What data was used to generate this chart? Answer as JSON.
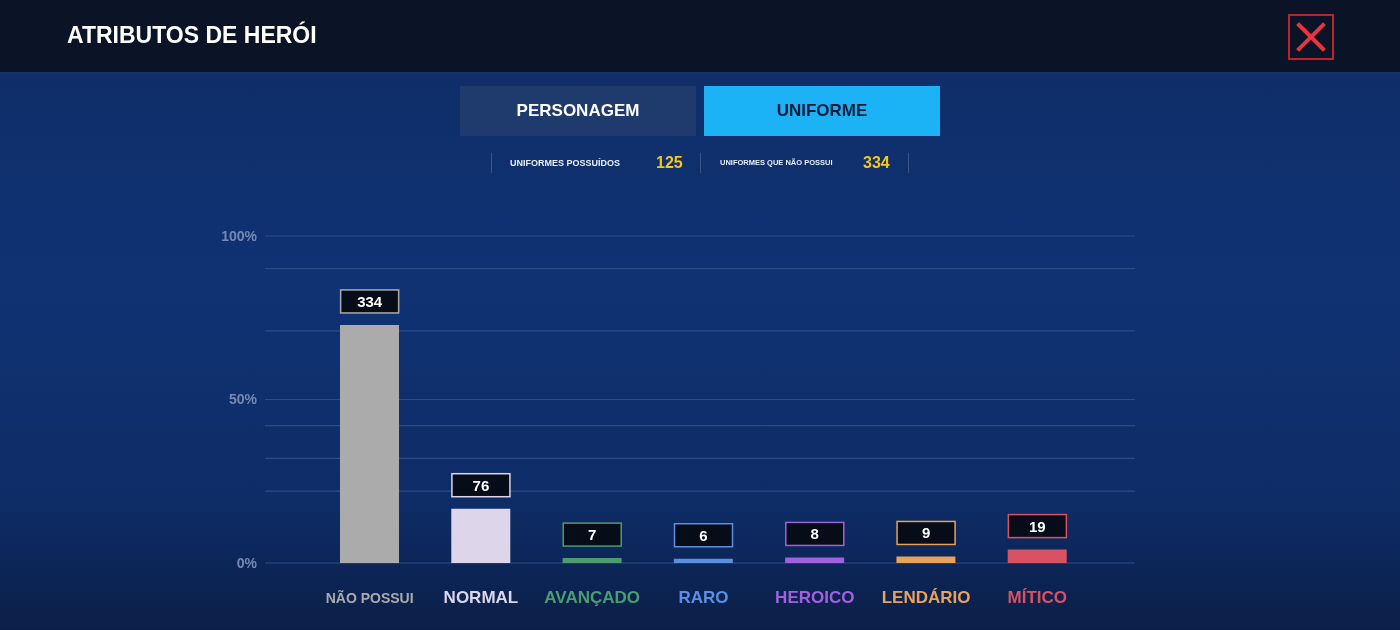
{
  "chart_data": {
    "type": "bar",
    "title": "ATRIBUTOS DE HERÓI",
    "categories": [
      "NÃO POSSUI",
      "NORMAL",
      "AVANÇADO",
      "RARO",
      "HEROICO",
      "LENDÁRIO",
      "MÍTICO"
    ],
    "values": [
      72.8,
      16.6,
      1.5,
      1.3,
      1.7,
      2.0,
      4.1
    ],
    "colors": [
      "#ababab",
      "#ddd5ea",
      "#4c9c70",
      "#5c8fe0",
      "#a261dc",
      "#e8a25a",
      "#d95262"
    ],
    "ylim": [
      0,
      100
    ],
    "yticks": [
      {
        "value": 0,
        "label": "0%"
      },
      {
        "value": 22,
        "label": null
      },
      {
        "value": 32,
        "label": null
      },
      {
        "value": 42,
        "label": null
      },
      {
        "value": 50,
        "label": "50%"
      },
      {
        "value": 71,
        "label": null
      },
      {
        "value": 90,
        "label": null
      },
      {
        "value": 100,
        "label": "100%"
      }
    ],
    "grid": "y",
    "annotations": [
      "PERSONAGEM",
      "UNIFORME",
      "UNIFORMES POSSUÍDOS",
      "125",
      "UNIFORMES QUE NÃO POSSUI",
      "334",
      {
        "text": "334",
        "x": "NÃO POSSUI",
        "y": 72.8
      },
      {
        "text": "76",
        "x": "NORMAL",
        "y": 16.6
      },
      {
        "text": "7",
        "x": "AVANÇADO",
        "y": 1.5
      },
      {
        "text": "6",
        "x": "RARO",
        "y": 1.3
      },
      {
        "text": "8",
        "x": "HEROICO",
        "y": 1.7
      },
      {
        "text": "9",
        "x": "LENDÁRIO",
        "y": 2.0
      },
      {
        "text": "19",
        "x": "MÍTICO",
        "y": 4.1
      }
    ]
  }
}
